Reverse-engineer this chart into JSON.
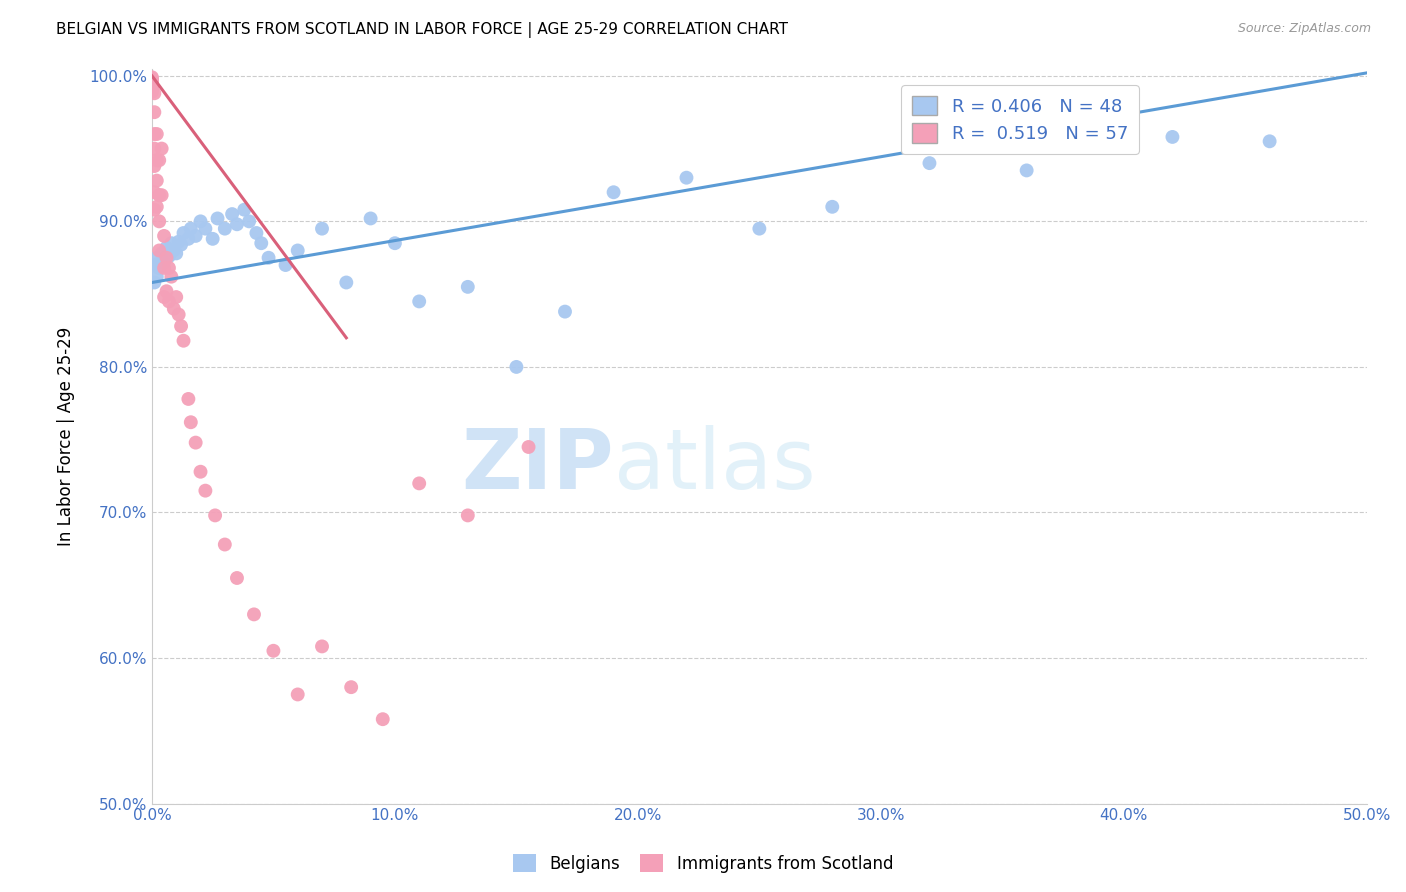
{
  "title": "BELGIAN VS IMMIGRANTS FROM SCOTLAND IN LABOR FORCE | AGE 25-29 CORRELATION CHART",
  "source": "Source: ZipAtlas.com",
  "ylabel": "In Labor Force | Age 25-29",
  "xlim": [
    0.0,
    0.5
  ],
  "ylim": [
    0.5,
    1.005
  ],
  "xticks": [
    0.0,
    0.1,
    0.2,
    0.3,
    0.4,
    0.5
  ],
  "yticks": [
    0.5,
    0.6,
    0.7,
    0.8,
    0.9,
    1.0
  ],
  "ytick_labels": [
    "50.0%",
    "60.0%",
    "70.0%",
    "80.0%",
    "90.0%",
    "100.0%"
  ],
  "xtick_labels": [
    "0.0%",
    "10.0%",
    "20.0%",
    "30.0%",
    "40.0%",
    "50.0%"
  ],
  "blue_R": 0.406,
  "blue_N": 48,
  "pink_R": 0.519,
  "pink_N": 57,
  "blue_label": "Belgians",
  "pink_label": "Immigrants from Scotland",
  "blue_color": "#A8C8F0",
  "pink_color": "#F4A0B8",
  "blue_line_color": "#5B9BD5",
  "pink_line_color": "#D9607A",
  "axis_color": "#4472C4",
  "blue_x": [
    0.001,
    0.001,
    0.002,
    0.002,
    0.003,
    0.004,
    0.005,
    0.006,
    0.007,
    0.008,
    0.009,
    0.01,
    0.011,
    0.012,
    0.013,
    0.015,
    0.016,
    0.018,
    0.02,
    0.022,
    0.025,
    0.027,
    0.03,
    0.033,
    0.035,
    0.038,
    0.04,
    0.043,
    0.045,
    0.048,
    0.055,
    0.06,
    0.07,
    0.08,
    0.09,
    0.1,
    0.11,
    0.13,
    0.15,
    0.17,
    0.19,
    0.22,
    0.25,
    0.28,
    0.32,
    0.36,
    0.42,
    0.46
  ],
  "blue_y": [
    0.858,
    0.87,
    0.862,
    0.875,
    0.868,
    0.878,
    0.872,
    0.882,
    0.876,
    0.885,
    0.88,
    0.878,
    0.886,
    0.884,
    0.892,
    0.888,
    0.895,
    0.89,
    0.9,
    0.895,
    0.888,
    0.902,
    0.895,
    0.905,
    0.898,
    0.908,
    0.9,
    0.892,
    0.885,
    0.875,
    0.87,
    0.88,
    0.895,
    0.858,
    0.902,
    0.885,
    0.845,
    0.855,
    0.8,
    0.838,
    0.92,
    0.93,
    0.895,
    0.91,
    0.94,
    0.935,
    0.958,
    0.955
  ],
  "pink_x": [
    0.0,
    0.0,
    0.0,
    0.0,
    0.0,
    0.0,
    0.0,
    0.0,
    0.0,
    0.0,
    0.001,
    0.001,
    0.001,
    0.001,
    0.001,
    0.001,
    0.001,
    0.002,
    0.002,
    0.002,
    0.002,
    0.003,
    0.003,
    0.003,
    0.003,
    0.004,
    0.004,
    0.005,
    0.005,
    0.005,
    0.006,
    0.006,
    0.007,
    0.007,
    0.008,
    0.009,
    0.01,
    0.011,
    0.012,
    0.013,
    0.015,
    0.016,
    0.018,
    0.02,
    0.022,
    0.026,
    0.03,
    0.035,
    0.042,
    0.05,
    0.06,
    0.07,
    0.082,
    0.095,
    0.11,
    0.13,
    0.155
  ],
  "pink_y": [
    0.999,
    0.998,
    0.997,
    0.996,
    0.995,
    0.994,
    0.993,
    0.992,
    0.991,
    0.989,
    0.988,
    0.975,
    0.96,
    0.95,
    0.938,
    0.92,
    0.908,
    0.96,
    0.942,
    0.928,
    0.91,
    0.942,
    0.918,
    0.9,
    0.88,
    0.95,
    0.918,
    0.89,
    0.868,
    0.848,
    0.875,
    0.852,
    0.868,
    0.845,
    0.862,
    0.84,
    0.848,
    0.836,
    0.828,
    0.818,
    0.778,
    0.762,
    0.748,
    0.728,
    0.715,
    0.698,
    0.678,
    0.655,
    0.63,
    0.605,
    0.575,
    0.608,
    0.58,
    0.558,
    0.72,
    0.698,
    0.745
  ]
}
